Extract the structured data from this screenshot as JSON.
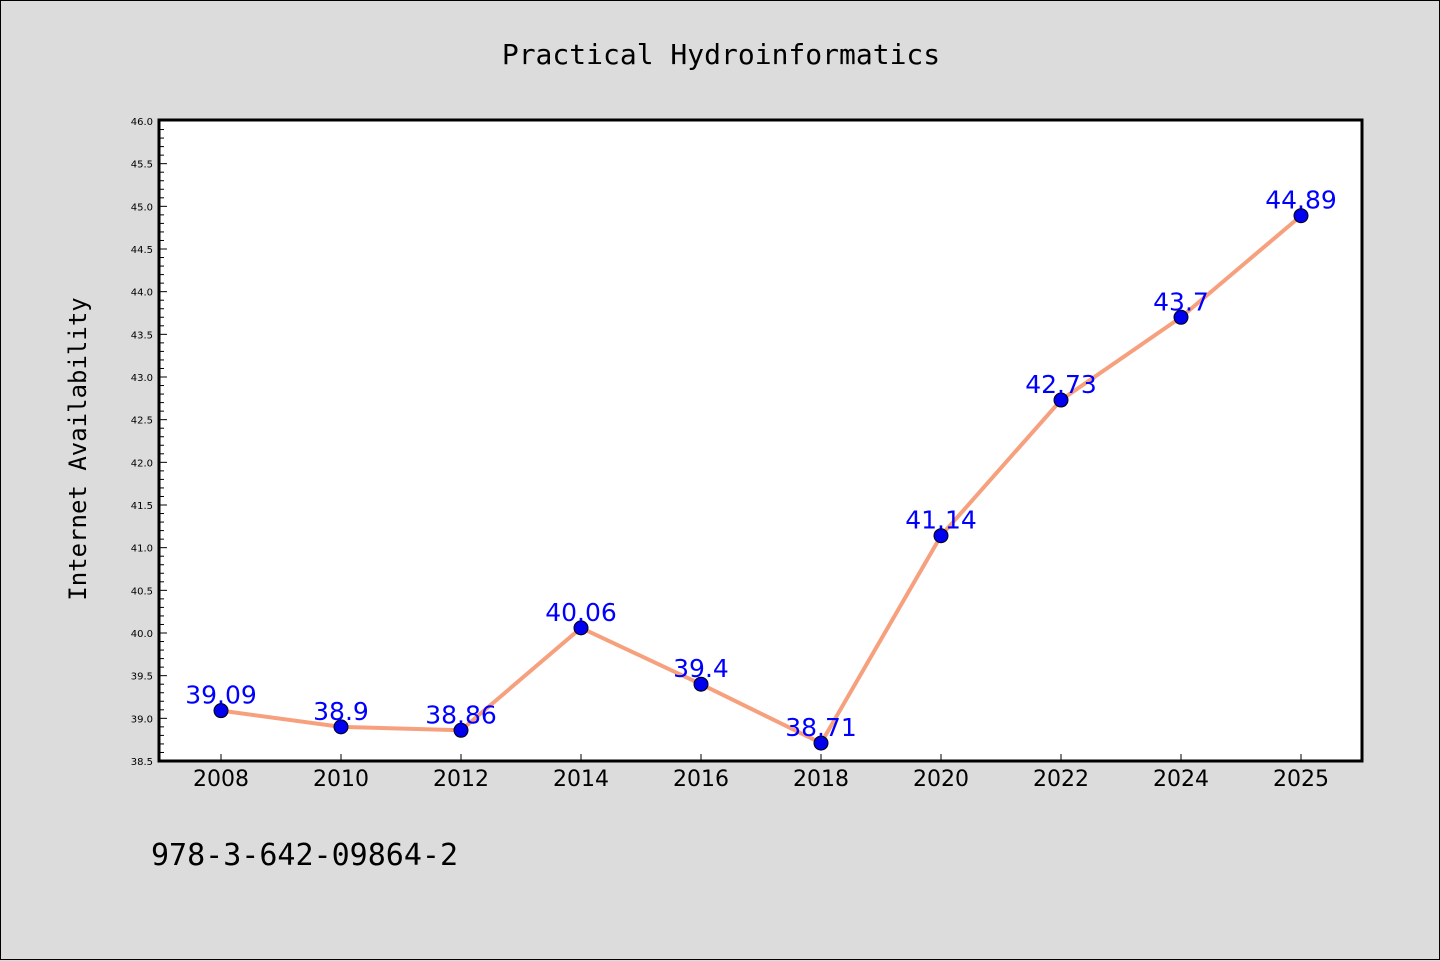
{
  "chart_data": {
    "type": "line",
    "title": "Practical Hydroinformatics",
    "ylabel": "Internet Availability",
    "xlabel": "",
    "categories": [
      "2008",
      "2010",
      "2012",
      "2014",
      "2016",
      "2018",
      "2020",
      "2022",
      "2024",
      "2025"
    ],
    "series": [
      {
        "values": [
          39.09,
          38.9,
          38.86,
          40.06,
          39.4,
          38.71,
          41.14,
          42.73,
          43.7,
          44.89
        ],
        "labels": [
          "39.09",
          "38.9",
          "38.86",
          "40.06",
          "39.4",
          "38.71",
          "41.14",
          "42.73",
          "43.7",
          "44.89"
        ],
        "line_color": "#f7a07e",
        "marker_color": "#0000ee",
        "label_color": "#0000ff"
      }
    ],
    "ylim": [
      38.5,
      46.0
    ],
    "y_major_step": 0.5,
    "y_minor_step": 0.1,
    "y_tick_labels": [
      "38.5",
      "39.0",
      "39.5",
      "40.0",
      "40.5",
      "41.0",
      "41.5",
      "42.0",
      "42.5",
      "43.0",
      "43.5",
      "44.0",
      "44.5",
      "45.0",
      "45.5",
      "46.0"
    ],
    "grid": false,
    "background": "#dcdcdc",
    "plot_background": "#ffffff"
  },
  "footer_text": "978-3-642-09864-2"
}
